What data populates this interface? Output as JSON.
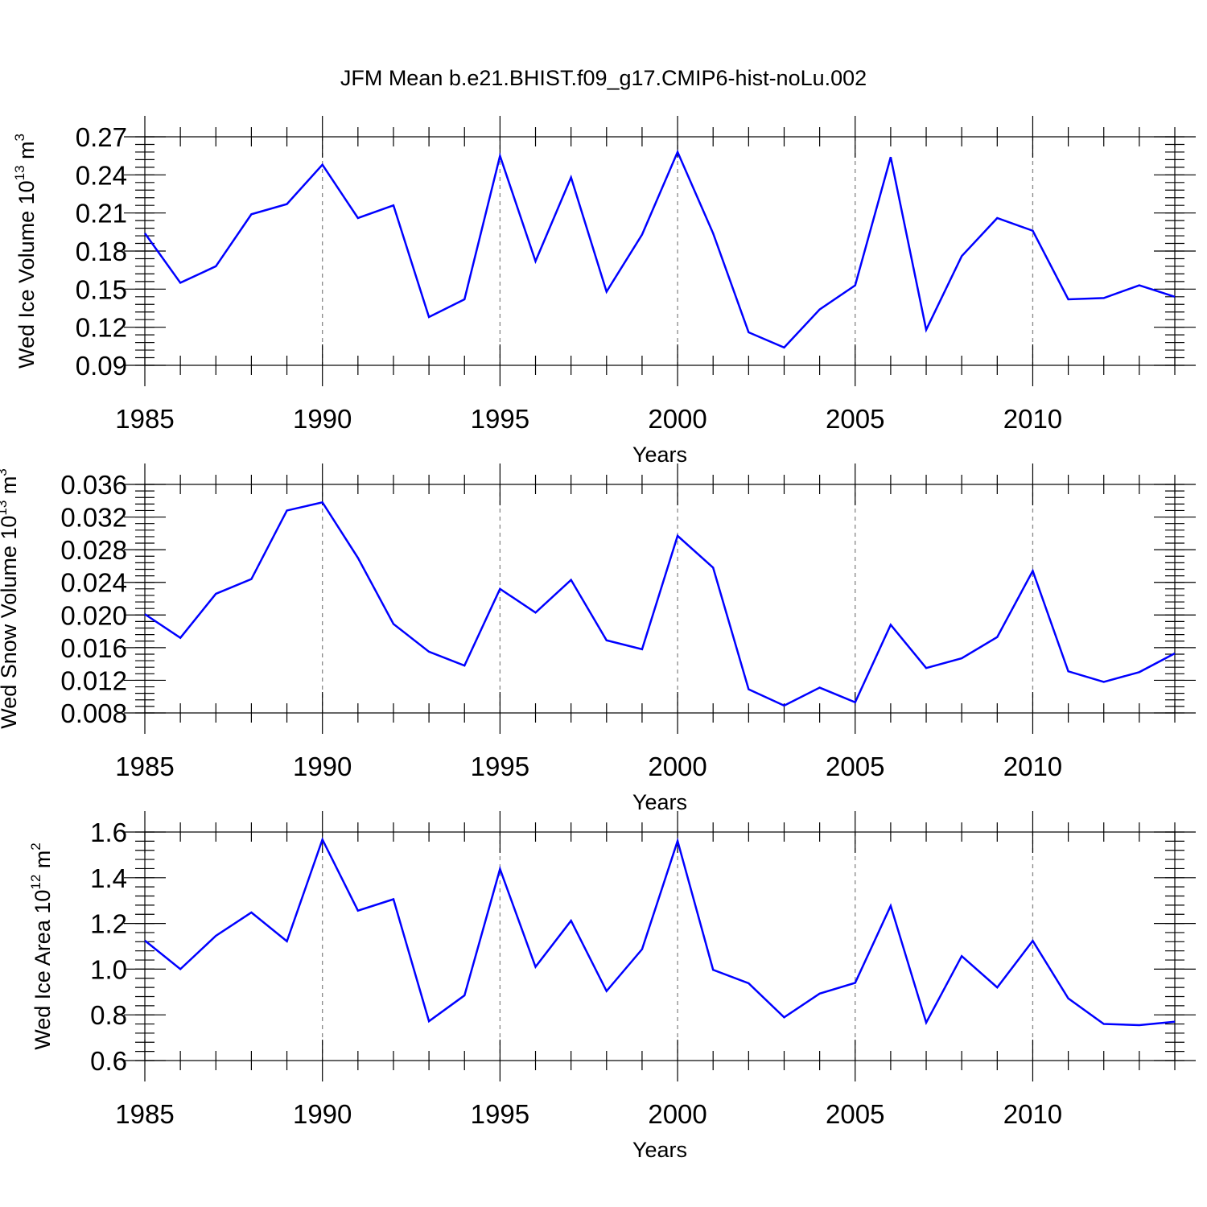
{
  "figure_title": "JFM Mean b.e21.BHIST.f09_g17.CMIP6-hist-noLu.002",
  "colors": {
    "line": "#0000ff",
    "grid": "#888888",
    "axis": "#000000"
  },
  "chart_data": [
    {
      "type": "line",
      "title": "JFM Mean b.e21.BHIST.f09_g17.CMIP6-hist-noLu.002",
      "xlabel": "Years",
      "ylabel": "Wed Ice Volume 10",
      "ylabel_unit": "m",
      "ylabel_exp1": "13",
      "ylabel_exp2": "3",
      "xlim": [
        1985,
        2014
      ],
      "ylim": [
        0.09,
        0.27
      ],
      "yticks": [
        0.09,
        0.12,
        0.15,
        0.18,
        0.21,
        0.24,
        0.27
      ],
      "ytick_labels": [
        "0.09",
        "0.12",
        "0.15",
        "0.18",
        "0.21",
        "0.24",
        "0.27"
      ],
      "ytick_minor_step": 0.006,
      "xticks": [
        1985,
        1990,
        1995,
        2000,
        2005,
        2010
      ],
      "xtick_labels": [
        "1985",
        "1990",
        "1995",
        "2000",
        "2005",
        "2010"
      ],
      "grid_x": [
        1990,
        1995,
        2000,
        2005,
        2010
      ],
      "x": [
        1985,
        1986,
        1987,
        1988,
        1989,
        1990,
        1991,
        1992,
        1993,
        1994,
        1995,
        1996,
        1997,
        1998,
        1999,
        2000,
        2001,
        2002,
        2003,
        2004,
        2005,
        2006,
        2007,
        2008,
        2009,
        2010,
        2011,
        2012,
        2013,
        2014
      ],
      "series": [
        {
          "name": "Wed Ice Volume",
          "values": [
            0.194,
            0.155,
            0.168,
            0.209,
            0.217,
            0.248,
            0.206,
            0.216,
            0.128,
            0.142,
            0.255,
            0.172,
            0.238,
            0.148,
            0.193,
            0.258,
            0.194,
            0.116,
            0.104,
            0.134,
            0.153,
            0.254,
            0.118,
            0.176,
            0.206,
            0.196,
            0.142,
            0.143,
            0.153,
            0.144
          ]
        }
      ]
    },
    {
      "type": "line",
      "xlabel": "Years",
      "ylabel": "Wed Snow Volume 10",
      "ylabel_unit": "m",
      "ylabel_exp1": "13",
      "ylabel_exp2": "3",
      "xlim": [
        1985,
        2014
      ],
      "ylim": [
        0.008,
        0.036
      ],
      "yticks": [
        0.008,
        0.012,
        0.016,
        0.02,
        0.024,
        0.028,
        0.032,
        0.036
      ],
      "ytick_labels": [
        "0.008",
        "0.012",
        "0.016",
        "0.020",
        "0.024",
        "0.028",
        "0.032",
        "0.036"
      ],
      "ytick_minor_step": 0.0008,
      "xticks": [
        1985,
        1990,
        1995,
        2000,
        2005,
        2010
      ],
      "xtick_labels": [
        "1985",
        "1990",
        "1995",
        "2000",
        "2005",
        "2010"
      ],
      "grid_x": [
        1990,
        1995,
        2000,
        2005,
        2010
      ],
      "x": [
        1985,
        1986,
        1987,
        1988,
        1989,
        1990,
        1991,
        1992,
        1993,
        1994,
        1995,
        1996,
        1997,
        1998,
        1999,
        2000,
        2001,
        2002,
        2003,
        2004,
        2005,
        2006,
        2007,
        2008,
        2009,
        2010,
        2011,
        2012,
        2013,
        2014
      ],
      "series": [
        {
          "name": "Wed Snow Volume",
          "values": [
            0.0201,
            0.0172,
            0.0226,
            0.0244,
            0.0328,
            0.0338,
            0.027,
            0.0189,
            0.0155,
            0.0138,
            0.0232,
            0.0203,
            0.0243,
            0.0169,
            0.0158,
            0.0297,
            0.0258,
            0.0109,
            0.0089,
            0.0111,
            0.0093,
            0.0188,
            0.0135,
            0.0147,
            0.0173,
            0.0254,
            0.0131,
            0.0118,
            0.013,
            0.0153
          ]
        }
      ]
    },
    {
      "type": "line",
      "xlabel": "Years",
      "ylabel": "Wed Ice Area 10",
      "ylabel_unit": "m",
      "ylabel_exp1": "12",
      "ylabel_exp2": "2",
      "xlim": [
        1985,
        2014
      ],
      "ylim": [
        0.6,
        1.6
      ],
      "yticks": [
        0.6,
        0.8,
        1.0,
        1.2,
        1.4,
        1.6
      ],
      "ytick_labels": [
        "0.6",
        "0.8",
        "1.0",
        "1.2",
        "1.4",
        "1.6"
      ],
      "ytick_minor_step": 0.04,
      "xticks": [
        1985,
        1990,
        1995,
        2000,
        2005,
        2010
      ],
      "xtick_labels": [
        "1985",
        "1990",
        "1995",
        "2000",
        "2005",
        "2010"
      ],
      "grid_x": [
        1990,
        1995,
        2000,
        2005,
        2010
      ],
      "x": [
        1985,
        1986,
        1987,
        1988,
        1989,
        1990,
        1991,
        1992,
        1993,
        1994,
        1995,
        1996,
        1997,
        1998,
        1999,
        2000,
        2001,
        2002,
        2003,
        2004,
        2005,
        2006,
        2007,
        2008,
        2009,
        2010,
        2011,
        2012,
        2013,
        2014
      ],
      "series": [
        {
          "name": "Wed Ice Area",
          "values": [
            1.125,
            1.0,
            1.146,
            1.248,
            1.122,
            1.567,
            1.256,
            1.306,
            0.772,
            0.885,
            1.438,
            1.01,
            1.212,
            0.904,
            1.087,
            1.561,
            0.997,
            0.938,
            0.789,
            0.893,
            0.94,
            1.277,
            0.766,
            1.057,
            0.92,
            1.124,
            0.872,
            0.76,
            0.755,
            0.77
          ]
        }
      ]
    }
  ]
}
